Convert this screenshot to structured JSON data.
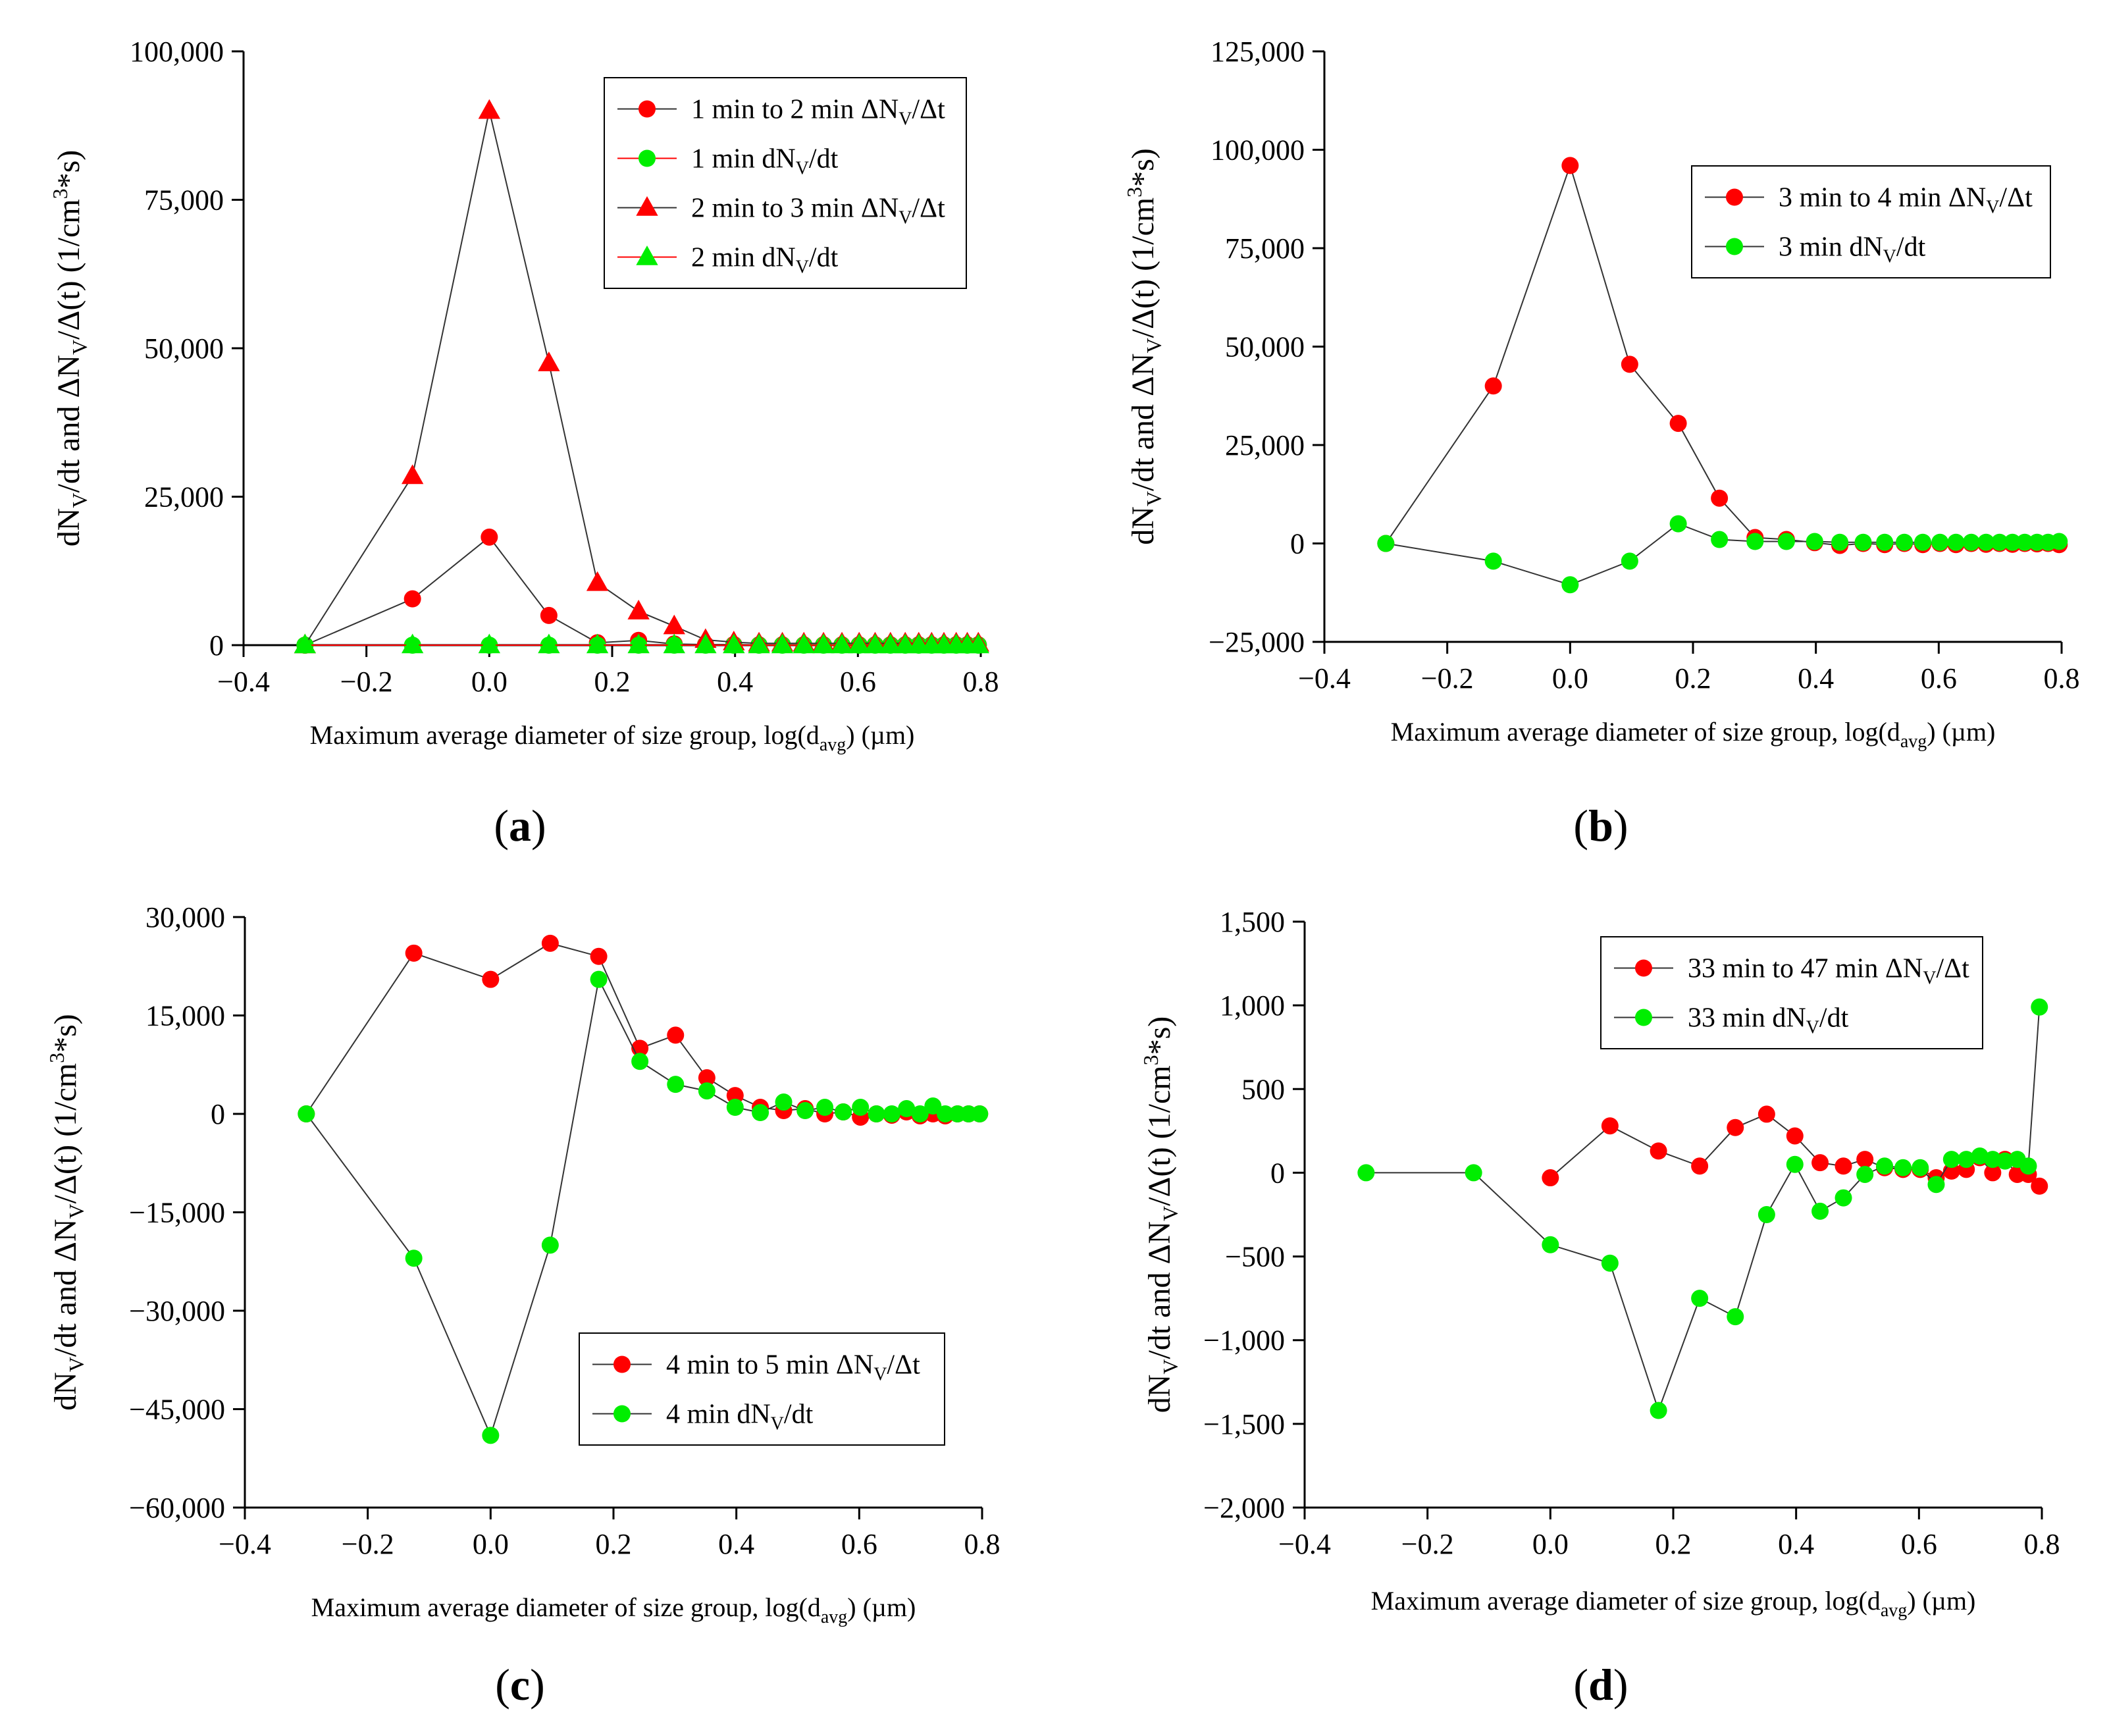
{
  "chart_data": [
    {
      "type": "line",
      "panel_label": "a",
      "xlabel": "Maximum average diameter of size group, log(d",
      "xlabel_sub": "avg",
      "xlabel_tail": ") (µm)",
      "ylabel_parts": [
        "dN",
        "V",
        "/dt and ΔN",
        "V",
        "/Δ(t) (1/cm",
        "3",
        "*s)"
      ],
      "xlim": [
        -0.4,
        0.8
      ],
      "ylim": [
        0,
        100000
      ],
      "x_ticks": [
        -0.4,
        -0.2,
        0.0,
        0.2,
        0.4,
        0.6,
        0.8
      ],
      "x_tick_labels": [
        "−0.4",
        "−0.2",
        "0.0",
        "0.2",
        "0.4",
        "0.6",
        "0.8"
      ],
      "y_ticks": [
        0,
        25000,
        50000,
        75000,
        100000
      ],
      "y_tick_labels": [
        "0",
        "25,000",
        "50,000",
        "75,000",
        "100,000"
      ],
      "legend_position": "top-right",
      "series": [
        {
          "name_main": "1 min to 2 min ΔN",
          "name_sub": "V",
          "name_tail": "/Δt",
          "color": "#ff0000",
          "marker": "circle",
          "line_color": "#333333",
          "x": [
            -0.3,
            -0.125,
            0.0,
            0.097,
            0.176,
            0.243,
            0.301,
            0.352,
            0.398,
            0.439,
            0.477,
            0.512,
            0.544,
            0.574,
            0.602,
            0.628,
            0.653,
            0.677,
            0.699,
            0.72,
            0.74,
            0.76,
            0.778,
            0.796
          ],
          "values": [
            0,
            7800,
            18200,
            5000,
            400,
            800,
            200,
            100,
            100,
            50,
            50,
            50,
            50,
            50,
            50,
            50,
            50,
            50,
            50,
            50,
            50,
            50,
            50,
            50
          ]
        },
        {
          "name_main": "1 min dN",
          "name_sub": "V",
          "name_tail": "/dt",
          "color": "#00ee00",
          "marker": "circle",
          "line_color": "#ff0000",
          "x": [
            -0.3,
            -0.125,
            0.0,
            0.097,
            0.176,
            0.243,
            0.301,
            0.352,
            0.398,
            0.439,
            0.477,
            0.512,
            0.544,
            0.574,
            0.602,
            0.628,
            0.653,
            0.677,
            0.699,
            0.72,
            0.74,
            0.76,
            0.778,
            0.796
          ],
          "values": [
            0,
            0,
            0,
            0,
            0,
            0,
            0,
            0,
            0,
            0,
            0,
            0,
            0,
            0,
            0,
            0,
            0,
            0,
            0,
            0,
            0,
            0,
            0,
            0
          ]
        },
        {
          "name_main": "2 min to 3 min ΔN",
          "name_sub": "V",
          "name_tail": "/Δt",
          "color": "#ff0000",
          "marker": "triangle",
          "line_color": "#333333",
          "x": [
            -0.3,
            -0.125,
            0.0,
            0.097,
            0.176,
            0.243,
            0.301,
            0.352,
            0.398,
            0.439,
            0.477,
            0.512,
            0.544,
            0.574,
            0.602,
            0.628,
            0.653,
            0.677,
            0.699,
            0.72,
            0.74,
            0.76,
            0.778,
            0.796
          ],
          "values": [
            0,
            28500,
            90000,
            47500,
            10500,
            5700,
            3200,
            900,
            500,
            300,
            300,
            300,
            300,
            300,
            300,
            300,
            300,
            300,
            300,
            300,
            300,
            300,
            300,
            300
          ]
        },
        {
          "name_main": "2 min dN",
          "name_sub": "V",
          "name_tail": "/dt",
          "color": "#00ee00",
          "marker": "triangle",
          "line_color": "#ff0000",
          "x": [
            -0.3,
            -0.125,
            0.0,
            0.097,
            0.176,
            0.243,
            0.301,
            0.352,
            0.398,
            0.439,
            0.477,
            0.512,
            0.544,
            0.574,
            0.602,
            0.628,
            0.653,
            0.677,
            0.699,
            0.72,
            0.74,
            0.76,
            0.778,
            0.796
          ],
          "values": [
            0,
            0,
            0,
            0,
            0,
            0,
            0,
            0,
            0,
            0,
            0,
            0,
            0,
            0,
            0,
            0,
            0,
            0,
            0,
            0,
            0,
            0,
            0,
            0
          ]
        }
      ]
    },
    {
      "type": "line",
      "panel_label": "b",
      "xlabel": "Maximum average diameter of size group, log(d",
      "xlabel_sub": "avg",
      "xlabel_tail": ") (µm)",
      "ylabel_parts": [
        "dN",
        "V",
        "/dt and ΔN",
        "V",
        "/Δ(t) (1/cm",
        "3",
        "*s)"
      ],
      "xlim": [
        -0.4,
        0.8
      ],
      "ylim": [
        -25000,
        125000
      ],
      "x_ticks": [
        -0.4,
        -0.2,
        0.0,
        0.2,
        0.4,
        0.6,
        0.8
      ],
      "x_tick_labels": [
        "−0.4",
        "−0.2",
        "0.0",
        "0.2",
        "0.4",
        "0.6",
        "0.8"
      ],
      "y_ticks": [
        -25000,
        0,
        25000,
        50000,
        75000,
        100000,
        125000
      ],
      "y_tick_labels": [
        "−25,000",
        "0",
        "25,000",
        "50,000",
        "75,000",
        "100,000",
        "125,000"
      ],
      "legend_position": "top-right",
      "series": [
        {
          "name_main": "3 min to 4 min ΔN",
          "name_sub": "V",
          "name_tail": "/Δt",
          "color": "#ff0000",
          "marker": "circle",
          "line_color": "#333333",
          "x": [
            -0.3,
            -0.125,
            0.0,
            0.097,
            0.176,
            0.243,
            0.301,
            0.352,
            0.398,
            0.439,
            0.477,
            0.512,
            0.544,
            0.574,
            0.602,
            0.628,
            0.653,
            0.677,
            0.699,
            0.72,
            0.74,
            0.76,
            0.778,
            0.796
          ],
          "values": [
            0,
            40000,
            96000,
            45500,
            30500,
            11500,
            1500,
            1000,
            200,
            -500,
            0,
            -300,
            0,
            -300,
            0,
            -300,
            0,
            -200,
            0,
            -200,
            0,
            -100,
            0,
            -300
          ]
        },
        {
          "name_main": "3 min dN",
          "name_sub": "V",
          "name_tail": "/dt",
          "color": "#00ee00",
          "marker": "circle",
          "line_color": "#333333",
          "x": [
            -0.3,
            -0.125,
            0.0,
            0.097,
            0.176,
            0.243,
            0.301,
            0.352,
            0.398,
            0.439,
            0.477,
            0.512,
            0.544,
            0.574,
            0.602,
            0.628,
            0.653,
            0.677,
            0.699,
            0.72,
            0.74,
            0.76,
            0.778,
            0.796
          ],
          "values": [
            0,
            -4500,
            -10500,
            -4500,
            5000,
            1000,
            500,
            500,
            500,
            300,
            300,
            300,
            300,
            300,
            300,
            300,
            300,
            300,
            300,
            300,
            300,
            300,
            300,
            500
          ]
        }
      ]
    },
    {
      "type": "line",
      "panel_label": "c",
      "xlabel": "Maximum average diameter of size group, log(d",
      "xlabel_sub": "avg",
      "xlabel_tail": ") (µm)",
      "ylabel_parts": [
        "dN",
        "V",
        "/dt and ΔN",
        "V",
        "/Δ(t) (1/cm",
        "3",
        "*s)"
      ],
      "xlim": [
        -0.4,
        0.8
      ],
      "ylim": [
        -60000,
        30000
      ],
      "x_ticks": [
        -0.4,
        -0.2,
        0.0,
        0.2,
        0.4,
        0.6,
        0.8
      ],
      "x_tick_labels": [
        "−0.4",
        "−0.2",
        "0.0",
        "0.2",
        "0.4",
        "0.6",
        "0.8"
      ],
      "y_ticks": [
        -60000,
        -45000,
        -30000,
        -15000,
        0,
        15000,
        30000
      ],
      "y_tick_labels": [
        "−60,000",
        "−45,000",
        "−30,000",
        "−15,000",
        "0",
        "15,000",
        "30,000"
      ],
      "legend_position": "bottom-right",
      "series": [
        {
          "name_main": "4 min to 5 min ΔN",
          "name_sub": "V",
          "name_tail": "/Δt",
          "color": "#ff0000",
          "marker": "circle",
          "line_color": "#333333",
          "x": [
            -0.3,
            -0.125,
            0.0,
            0.097,
            0.176,
            0.243,
            0.301,
            0.352,
            0.398,
            0.439,
            0.477,
            0.512,
            0.544,
            0.574,
            0.602,
            0.628,
            0.653,
            0.677,
            0.699,
            0.72,
            0.74,
            0.76,
            0.778,
            0.796
          ],
          "values": [
            0,
            24500,
            20500,
            26000,
            24000,
            10000,
            12000,
            5500,
            2800,
            1000,
            500,
            800,
            0,
            300,
            -500,
            0,
            -200,
            300,
            -300,
            0,
            -300,
            0,
            0,
            0
          ]
        },
        {
          "name_main": "4 min dN",
          "name_sub": "V",
          "name_tail": "/dt",
          "color": "#00ee00",
          "marker": "circle",
          "line_color": "#333333",
          "x": [
            -0.3,
            -0.125,
            0.0,
            0.097,
            0.176,
            0.243,
            0.301,
            0.352,
            0.398,
            0.439,
            0.477,
            0.512,
            0.544,
            0.574,
            0.602,
            0.628,
            0.653,
            0.677,
            0.699,
            0.72,
            0.74,
            0.76,
            0.778,
            0.796
          ],
          "values": [
            0,
            -22000,
            -49000,
            -20000,
            20500,
            8000,
            4500,
            3500,
            1000,
            200,
            1800,
            500,
            1000,
            300,
            1000,
            0,
            0,
            800,
            0,
            1200,
            0,
            0,
            0,
            0
          ]
        }
      ]
    },
    {
      "type": "line",
      "panel_label": "d",
      "xlabel": "Maximum average diameter of size group, log(d",
      "xlabel_sub": "avg",
      "xlabel_tail": ") (µm)",
      "ylabel_parts": [
        "dN",
        "V",
        "/dt and ΔN",
        "V",
        "/Δ(t) (1/cm",
        "3",
        "*s)"
      ],
      "xlim": [
        -0.4,
        0.8
      ],
      "ylim": [
        -2000,
        1500
      ],
      "x_ticks": [
        -0.4,
        -0.2,
        0.0,
        0.2,
        0.4,
        0.6,
        0.8
      ],
      "x_tick_labels": [
        "−0.4",
        "−0.2",
        "0.0",
        "0.2",
        "0.4",
        "0.6",
        "0.8"
      ],
      "y_ticks": [
        -2000,
        -1500,
        -1000,
        -500,
        0,
        500,
        1000,
        1500
      ],
      "y_tick_labels": [
        "−2,000",
        "−1,500",
        "−1,000",
        "−500",
        "0",
        "500",
        "1,000",
        "1,500"
      ],
      "legend_position": "top-right",
      "series": [
        {
          "name_main": "33 min to 47 min ΔN",
          "name_sub": "V",
          "name_tail": "/Δt",
          "color": "#ff0000",
          "marker": "circle",
          "line_color": "#333333",
          "x": [
            0.0,
            0.097,
            0.176,
            0.243,
            0.301,
            0.352,
            0.398,
            0.439,
            0.477,
            0.512,
            0.544,
            0.574,
            0.602,
            0.628,
            0.653,
            0.677,
            0.699,
            0.72,
            0.74,
            0.76,
            0.778,
            0.796
          ],
          "values": [
            -30,
            280,
            130,
            40,
            270,
            350,
            220,
            60,
            40,
            80,
            30,
            20,
            20,
            -30,
            10,
            20,
            90,
            0,
            80,
            -10,
            -10,
            -80
          ]
        },
        {
          "name_main": "33 min dN",
          "name_sub": "V",
          "name_tail": "/dt",
          "color": "#00ee00",
          "marker": "circle",
          "line_color": "#333333",
          "x": [
            -0.3,
            -0.125,
            0.0,
            0.097,
            0.176,
            0.243,
            0.301,
            0.352,
            0.398,
            0.439,
            0.477,
            0.512,
            0.544,
            0.574,
            0.602,
            0.628,
            0.653,
            0.677,
            0.699,
            0.72,
            0.74,
            0.76,
            0.778,
            0.796
          ],
          "values": [
            0,
            0,
            -430,
            -540,
            -1420,
            -750,
            -860,
            -250,
            50,
            -230,
            -150,
            -10,
            40,
            30,
            30,
            -70,
            80,
            80,
            100,
            80,
            70,
            80,
            40,
            990
          ]
        }
      ]
    }
  ]
}
